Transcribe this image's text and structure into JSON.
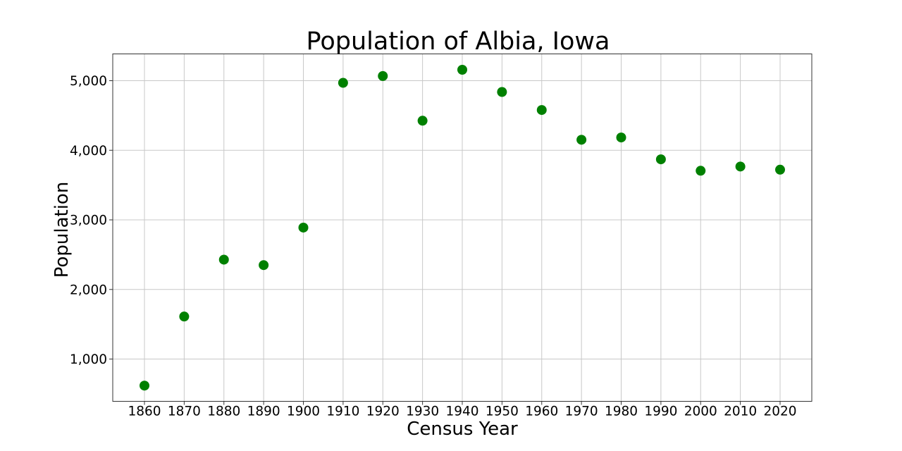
{
  "chart_data": {
    "type": "scatter",
    "title": "Population of Albia, Iowa",
    "xlabel": "Census Year",
    "ylabel": "Population",
    "categories": [
      "1860",
      "1870",
      "1880",
      "1890",
      "1900",
      "1910",
      "1920",
      "1930",
      "1940",
      "1950",
      "1960",
      "1970",
      "1980",
      "1990",
      "2000",
      "2010",
      "2020"
    ],
    "x": [
      1860,
      1870,
      1880,
      1890,
      1900,
      1910,
      1920,
      1930,
      1940,
      1950,
      1960,
      1970,
      1980,
      1990,
      2000,
      2010,
      2020
    ],
    "values": [
      618,
      1611,
      2428,
      2350,
      2889,
      4969,
      5067,
      4425,
      5157,
      4838,
      4579,
      4151,
      4184,
      3870,
      3706,
      3766,
      3721
    ],
    "series": [
      {
        "name": "Population",
        "color": "#008000",
        "values": [
          618,
          1611,
          2428,
          2350,
          2889,
          4969,
          5067,
          4425,
          5157,
          4838,
          4579,
          4151,
          4184,
          3870,
          3706,
          3766,
          3721
        ]
      }
    ],
    "yticks": [
      1000,
      2000,
      3000,
      4000,
      5000
    ],
    "ytick_labels": [
      "1,000",
      "2,000",
      "3,000",
      "4,000",
      "5,000"
    ],
    "ylim": [
      380,
      5390
    ],
    "xlim": [
      1852,
      2028
    ],
    "grid": true,
    "legend": null,
    "marker_color": "#008000"
  }
}
